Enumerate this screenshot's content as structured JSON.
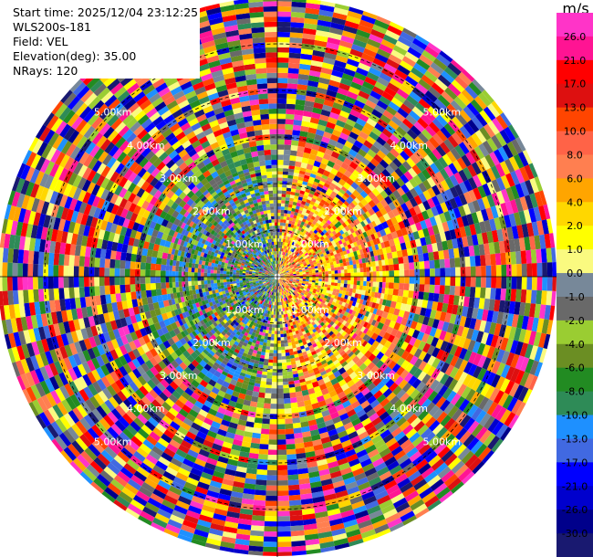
{
  "header": {
    "start_time": "Start time: 2025/12/04 23:12:25",
    "site": "WLS200s-181",
    "field": "Field: VEL",
    "elevation": "Elevation(deg): 35.00",
    "nrays": "NRays: 120"
  },
  "chart_data": {
    "type": "heatmap",
    "projection": "polar (PPI scan)",
    "field": "VEL",
    "nrays": 120,
    "range_unit": "km",
    "max_range_km": 6.0,
    "range_rings": [
      {
        "label": "1.00km",
        "km": 1
      },
      {
        "label": "2.00km",
        "km": 2
      },
      {
        "label": "3.00km",
        "km": 3
      },
      {
        "label": "4.00km",
        "km": 4
      },
      {
        "label": "5.00km",
        "km": 5
      }
    ],
    "colorbar": {
      "unit": "m/s",
      "ticks": [
        "26.0",
        "21.0",
        "17.0",
        "13.0",
        "10.0",
        "8.0",
        "6.0",
        "4.0",
        "2.0",
        "1.0",
        "0.0",
        "-1.0",
        "-2.0",
        "-4.0",
        "-6.0",
        "-8.0",
        "-10.0",
        "-13.0",
        "-17.0",
        "-21.0",
        "-26.0",
        "-30.0"
      ],
      "colors": [
        "#ff34c8",
        "#ff1493",
        "#ff0000",
        "#dd1010",
        "#ff4500",
        "#ff6347",
        "#ff7f50",
        "#ffa500",
        "#ffd700",
        "#ffff00",
        "#fafa80",
        "#778899",
        "#696969",
        "#9acd32",
        "#6b8e23",
        "#228b22",
        "#2e8b57",
        "#1e90ff",
        "#4169e1",
        "#0000ff",
        "#0000cd",
        "#00008b",
        "#191970"
      ]
    }
  }
}
